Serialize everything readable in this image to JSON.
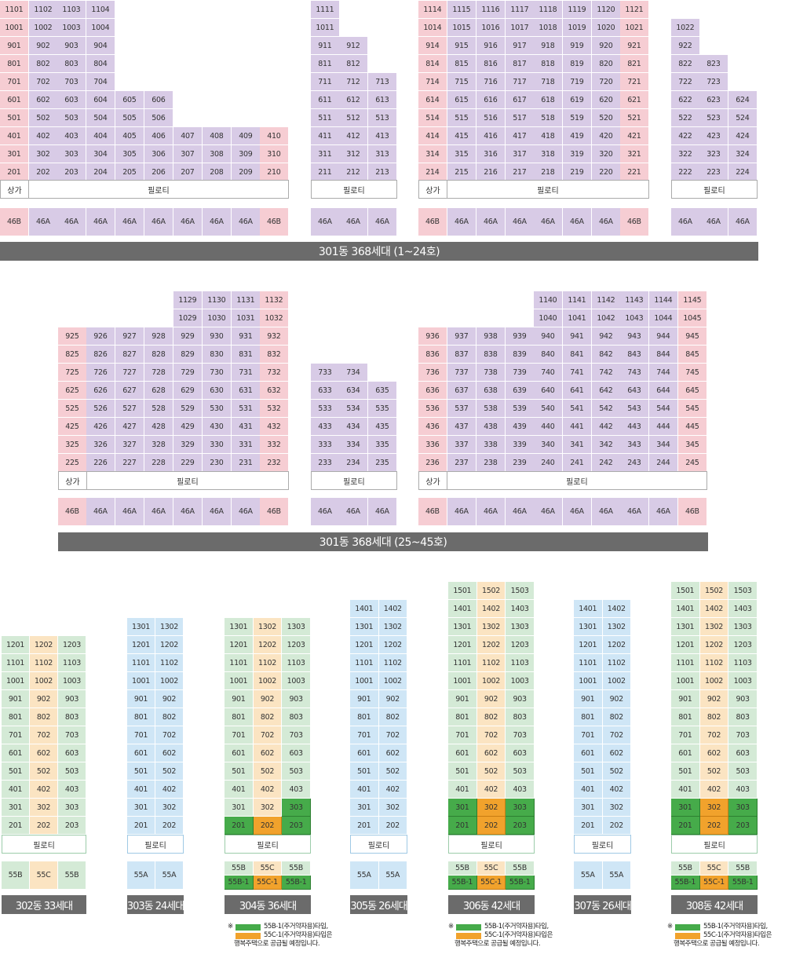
{
  "buildings_301": {
    "label_labels": {
      "store": "상가",
      "piloti": "필로티"
    },
    "header_top": "301동 368세대 (1~24호)",
    "header_bottom": "301동 368세대 (25~45호)"
  },
  "blocks_301_top": [
    {
      "cols": [
        {
          "type": "46B",
          "col": 1,
          "floors": [
            2,
            11
          ]
        },
        {
          "type": "46A",
          "col": 2,
          "floors": [
            2,
            11
          ]
        },
        {
          "type": "46A",
          "col": 3,
          "floors": [
            2,
            11
          ]
        },
        {
          "type": "46A",
          "col": 4,
          "floors": [
            2,
            11
          ]
        },
        {
          "type": "46A",
          "col": 5,
          "floors": [
            2,
            6
          ]
        },
        {
          "type": "46A",
          "col": 6,
          "floors": [
            2,
            6
          ]
        },
        {
          "type": "46A",
          "col": 7,
          "floors": [
            2,
            4
          ]
        },
        {
          "type": "46A",
          "col": 8,
          "floors": [
            2,
            4
          ]
        },
        {
          "type": "46A",
          "col": 9,
          "floors": [
            2,
            4
          ]
        },
        {
          "type": "46B",
          "col": 10,
          "floors": [
            2,
            4
          ]
        }
      ],
      "has_store": true
    },
    {
      "cols": [
        {
          "type": "46A",
          "col": 11,
          "floors": [
            2,
            11
          ]
        },
        {
          "type": "46A",
          "col": 12,
          "floors": [
            2,
            9
          ]
        },
        {
          "type": "46A",
          "col": 13,
          "floors": [
            2,
            7
          ]
        }
      ],
      "has_store": false
    },
    {
      "cols": [
        {
          "type": "46B",
          "col": 14,
          "floors": [
            2,
            11
          ]
        },
        {
          "type": "46A",
          "col": 15,
          "floors": [
            2,
            11
          ]
        },
        {
          "type": "46A",
          "col": 16,
          "floors": [
            2,
            11
          ]
        },
        {
          "type": "46A",
          "col": 17,
          "floors": [
            2,
            11
          ]
        },
        {
          "type": "46A",
          "col": 18,
          "floors": [
            2,
            11
          ]
        },
        {
          "type": "46A",
          "col": 19,
          "floors": [
            2,
            11
          ]
        },
        {
          "type": "46A",
          "col": 20,
          "floors": [
            2,
            11
          ]
        },
        {
          "type": "46B",
          "col": 21,
          "floors": [
            2,
            11
          ]
        }
      ],
      "has_store": true
    },
    {
      "cols": [
        {
          "type": "46A",
          "col": 22,
          "floors": [
            2,
            10
          ]
        },
        {
          "type": "46A",
          "col": 23,
          "floors": [
            2,
            8
          ]
        },
        {
          "type": "46A",
          "col": 24,
          "floors": [
            2,
            6
          ]
        }
      ],
      "has_store": false
    }
  ],
  "blocks_301_bottom": [
    {
      "cols": [
        {
          "type": "46B",
          "col": 25,
          "floors": [
            2,
            9
          ]
        },
        {
          "type": "46A",
          "col": 26,
          "floors": [
            2,
            9
          ]
        },
        {
          "type": "46A",
          "col": 27,
          "floors": [
            2,
            9
          ]
        },
        {
          "type": "46A",
          "col": 28,
          "floors": [
            2,
            9
          ]
        },
        {
          "type": "46A",
          "col": 29,
          "floors": [
            2,
            11
          ]
        },
        {
          "type": "46A",
          "col": 30,
          "floors": [
            2,
            11
          ]
        },
        {
          "type": "46A",
          "col": 31,
          "floors": [
            2,
            11
          ]
        },
        {
          "type": "46B",
          "col": 32,
          "floors": [
            2,
            11
          ]
        }
      ],
      "has_store": true
    },
    {
      "cols": [
        {
          "type": "46A",
          "col": 33,
          "floors": [
            2,
            7
          ]
        },
        {
          "type": "46A",
          "col": 34,
          "floors": [
            2,
            7
          ]
        },
        {
          "type": "46A",
          "col": 35,
          "floors": [
            2,
            6
          ]
        }
      ],
      "has_store": false
    },
    {
      "cols": [
        {
          "type": "46B",
          "col": 36,
          "floors": [
            2,
            9
          ]
        },
        {
          "type": "46A",
          "col": 37,
          "floors": [
            2,
            9
          ]
        },
        {
          "type": "46A",
          "col": 38,
          "floors": [
            2,
            9
          ]
        },
        {
          "type": "46A",
          "col": 39,
          "floors": [
            2,
            9
          ]
        },
        {
          "type": "46A",
          "col": 40,
          "floors": [
            2,
            11
          ]
        },
        {
          "type": "46A",
          "col": 41,
          "floors": [
            2,
            11
          ]
        },
        {
          "type": "46A",
          "col": 42,
          "floors": [
            2,
            11
          ]
        },
        {
          "type": "46A",
          "col": 43,
          "floors": [
            2,
            11
          ]
        },
        {
          "type": "46A",
          "col": 44,
          "floors": [
            2,
            11
          ]
        },
        {
          "type": "46B",
          "col": 45,
          "floors": [
            2,
            11
          ]
        }
      ],
      "has_store": true
    }
  ],
  "small_buildings": [
    {
      "name": "302동 33세대",
      "palette": "mixed",
      "top_floor": 12,
      "cols": [
        "55B",
        "55C",
        "55B"
      ],
      "rental_first_floor": 0,
      "rental_top_floor": 0
    },
    {
      "name": "303동 24세대",
      "palette": "blue",
      "top_floor": 13,
      "cols": [
        "55A",
        "55A"
      ],
      "rental_first_floor": 0,
      "rental_top_floor": 0
    },
    {
      "name": "304동 36세대",
      "palette": "mixed",
      "top_floor": 13,
      "cols": [
        "55B",
        "55C",
        "55B"
      ],
      "rental_first_floor": 2,
      "rental_top_floor": 2,
      "rental_extra": [
        {
          "floor": 3,
          "col": 2
        }
      ],
      "rental_types": [
        "55B-1",
        "55C-1",
        "55B-1"
      ]
    },
    {
      "name": "305동 26세대",
      "palette": "blue",
      "top_floor": 14,
      "cols": [
        "55A",
        "55A"
      ],
      "rental_first_floor": 0,
      "rental_top_floor": 0
    },
    {
      "name": "306동 42세대",
      "palette": "mixed",
      "top_floor": 15,
      "cols": [
        "55B",
        "55C",
        "55B"
      ],
      "rental_first_floor": 2,
      "rental_top_floor": 3,
      "rental_types": [
        "55B-1",
        "55C-1",
        "55B-1"
      ]
    },
    {
      "name": "307동 26세대",
      "palette": "blue",
      "top_floor": 14,
      "cols": [
        "55A",
        "55A"
      ],
      "rental_first_floor": 0,
      "rental_top_floor": 0
    },
    {
      "name": "308동 42세대",
      "palette": "mixed",
      "top_floor": 15,
      "cols": [
        "55B",
        "55C",
        "55B"
      ],
      "rental_first_floor": 2,
      "rental_top_floor": 3,
      "rental_types": [
        "55B-1",
        "55C-1",
        "55B-1"
      ]
    }
  ],
  "note": {
    "asterisk": "※",
    "line1": "55B-1(주거약자용)타입,",
    "line2": "55C-1(주거약자용)타입은",
    "line3": "행복주택으로 공급될 예정입니다."
  },
  "colors": {
    "type_46A": "#d8cbe6",
    "type_46B": "#f6cdd3",
    "type_55B": "#d4ead6",
    "type_55C": "#fbe4c2",
    "type_55A": "#cfe6f6",
    "type_55B_1": "#46ab4a",
    "type_55C_1": "#f1a22c",
    "header_bg": "#6b6b6b"
  }
}
